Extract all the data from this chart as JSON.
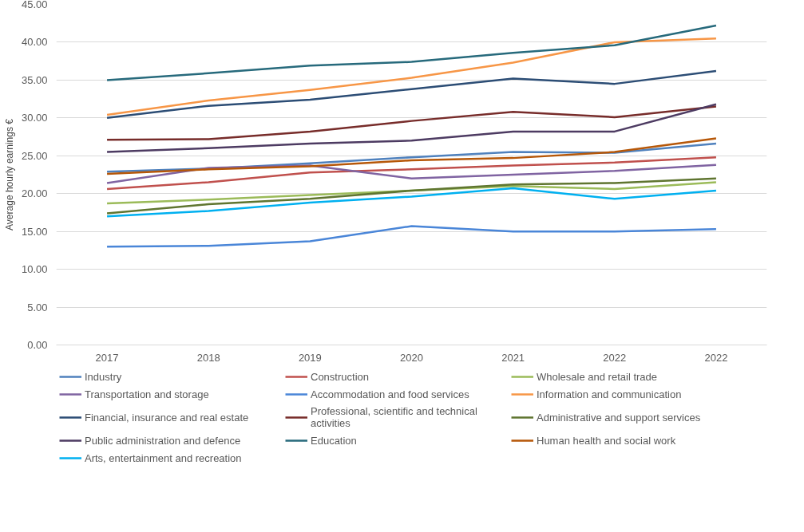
{
  "chart_data": {
    "type": "line",
    "ylabel": "Average hourly earnings €",
    "categories": [
      "2017",
      "2018",
      "2019",
      "2020",
      "2021",
      "2022",
      "2022"
    ],
    "ylim": [
      0,
      45
    ],
    "yticks": [
      {
        "value": 0,
        "label": "0.00"
      },
      {
        "value": 5,
        "label": "5.00"
      },
      {
        "value": 10,
        "label": "10.00"
      },
      {
        "value": 15,
        "label": "15.00"
      },
      {
        "value": 20,
        "label": "20.00"
      },
      {
        "value": 25,
        "label": "25.00"
      },
      {
        "value": 30,
        "label": "30.00"
      },
      {
        "value": 35,
        "label": "35.00"
      },
      {
        "value": 40,
        "label": "40.00"
      },
      {
        "value": 45,
        "label": "45.00"
      }
    ],
    "grid": "y",
    "legend": "bottom",
    "marker": "none",
    "line_style": "solid",
    "series": [
      {
        "name": "Industry",
        "color": "#4f81bd",
        "values": [
          22.9,
          23.3,
          24.0,
          24.8,
          25.5,
          25.4,
          26.6
        ]
      },
      {
        "name": "Construction",
        "color": "#c0504d",
        "values": [
          20.6,
          21.5,
          22.8,
          23.2,
          23.7,
          24.1,
          24.8
        ]
      },
      {
        "name": "Wholesale and retail trade",
        "color": "#9bbb59",
        "values": [
          18.7,
          19.2,
          19.8,
          20.4,
          21.0,
          20.6,
          21.5
        ]
      },
      {
        "name": "Transportation and storage",
        "color": "#8064a2",
        "values": [
          21.4,
          23.4,
          23.7,
          22.0,
          22.5,
          23.0,
          23.8
        ]
      },
      {
        "name": "Accommodation and food services",
        "color": "#4a86d8",
        "values": [
          13.0,
          13.1,
          13.7,
          15.7,
          15.0,
          15.0,
          15.3
        ]
      },
      {
        "name": "Information and communication",
        "color": "#f79646",
        "values": [
          30.4,
          32.3,
          33.7,
          35.3,
          37.3,
          40.0,
          40.5
        ]
      },
      {
        "name": "Financial, insurance and real estate",
        "color": "#2c4d75",
        "values": [
          30.0,
          31.6,
          32.4,
          33.8,
          35.2,
          34.5,
          36.2
        ]
      },
      {
        "name": "Professional, scientific and technical activities",
        "color": "#772c2a",
        "values": [
          27.1,
          27.2,
          28.2,
          29.6,
          30.8,
          30.1,
          31.5
        ]
      },
      {
        "name": "Administrative and support services",
        "color": "#5f7530",
        "values": [
          17.4,
          18.6,
          19.3,
          20.4,
          21.2,
          21.4,
          22.0
        ]
      },
      {
        "name": "Public administration and defence",
        "color": "#4d3b62",
        "values": [
          25.5,
          26.0,
          26.6,
          27.0,
          28.2,
          28.2,
          31.8
        ]
      },
      {
        "name": "Education",
        "color": "#276a7c",
        "values": [
          35.0,
          35.9,
          36.9,
          37.4,
          38.6,
          39.6,
          42.2
        ]
      },
      {
        "name": "Human health and social work",
        "color": "#b65708",
        "values": [
          22.6,
          23.2,
          23.6,
          24.4,
          24.7,
          25.5,
          27.3
        ]
      },
      {
        "name": "Arts, entertainment and recreation",
        "color": "#00b0f0",
        "values": [
          17.0,
          17.7,
          18.8,
          19.6,
          20.7,
          19.3,
          20.4
        ]
      }
    ]
  }
}
